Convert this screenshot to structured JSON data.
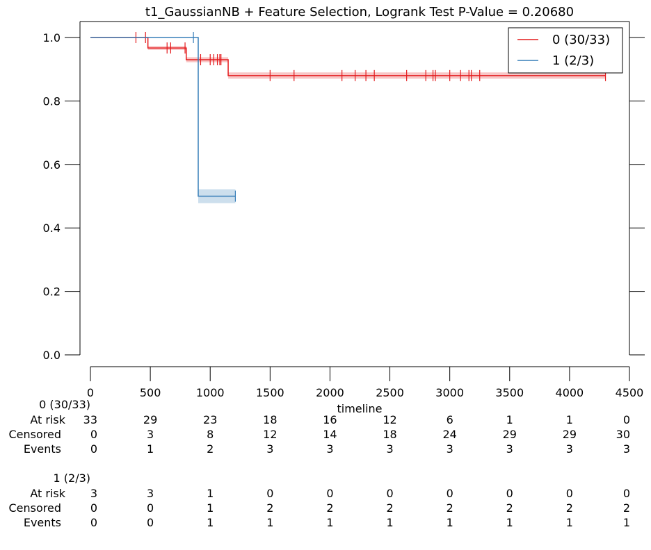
{
  "chart_data": {
    "type": "line",
    "title": "t1_GaussianNB + Feature Selection, Logrank Test P-Value = 0.20680",
    "xlabel": "timeline",
    "ylabel": "",
    "xlim": [
      0,
      4500
    ],
    "ylim": [
      0.0,
      1.0
    ],
    "x_ticks": [
      "0",
      "500",
      "1000",
      "1500",
      "2000",
      "2500",
      "3000",
      "3500",
      "4000",
      "4500"
    ],
    "y_ticks": [
      "0.0",
      "0.2",
      "0.4",
      "0.6",
      "0.8",
      "1.0"
    ],
    "legend_position": "top-right",
    "grid": false,
    "series": [
      {
        "name": "0 (30/33)",
        "color": "#e41a1c",
        "steps": [
          [
            0,
            1.0
          ],
          [
            480,
            0.967
          ],
          [
            800,
            0.93
          ],
          [
            1150,
            0.88
          ],
          [
            4300,
            0.88
          ]
        ],
        "ci_band": [
          [
            0,
            1.0,
            1.0
          ],
          [
            480,
            0.961,
            0.973
          ],
          [
            800,
            0.922,
            0.938
          ],
          [
            1150,
            0.87,
            0.89
          ],
          [
            4300,
            0.87,
            0.89
          ]
        ],
        "censor_times": [
          380,
          460,
          640,
          670,
          790,
          920,
          1000,
          1030,
          1060,
          1080,
          1090,
          1500,
          1700,
          2100,
          2210,
          2300,
          2370,
          2640,
          2800,
          2860,
          2880,
          3000,
          3090,
          3160,
          3180,
          3250,
          4300
        ]
      },
      {
        "name": "1 (2/3)",
        "color": "#377eb8",
        "steps": [
          [
            0,
            1.0
          ],
          [
            900,
            0.5
          ],
          [
            1210,
            0.5
          ]
        ],
        "ci_band": [
          [
            0,
            1.0,
            1.0
          ],
          [
            900,
            0.478,
            0.522
          ],
          [
            1210,
            0.478,
            0.522
          ]
        ],
        "censor_times": [
          860,
          1210
        ]
      }
    ]
  },
  "at_risk_table": {
    "x_positions": [
      0,
      500,
      1000,
      1500,
      2000,
      2500,
      3000,
      3500,
      4000,
      4500
    ],
    "row_labels": [
      "At risk",
      "Censored",
      "Events"
    ],
    "groups": [
      {
        "name": "0 (30/33)",
        "at_risk": [
          "33",
          "29",
          "23",
          "18",
          "16",
          "12",
          "6",
          "1",
          "1",
          "0"
        ],
        "censored": [
          "0",
          "3",
          "8",
          "12",
          "14",
          "18",
          "24",
          "29",
          "29",
          "30"
        ],
        "events": [
          "0",
          "1",
          "2",
          "3",
          "3",
          "3",
          "3",
          "3",
          "3",
          "3"
        ]
      },
      {
        "name": "1 (2/3)",
        "at_risk": [
          "3",
          "3",
          "1",
          "0",
          "0",
          "0",
          "0",
          "0",
          "0",
          "0"
        ],
        "censored": [
          "0",
          "0",
          "1",
          "2",
          "2",
          "2",
          "2",
          "2",
          "2",
          "2"
        ],
        "events": [
          "0",
          "0",
          "1",
          "1",
          "1",
          "1",
          "1",
          "1",
          "1",
          "1"
        ]
      }
    ]
  }
}
